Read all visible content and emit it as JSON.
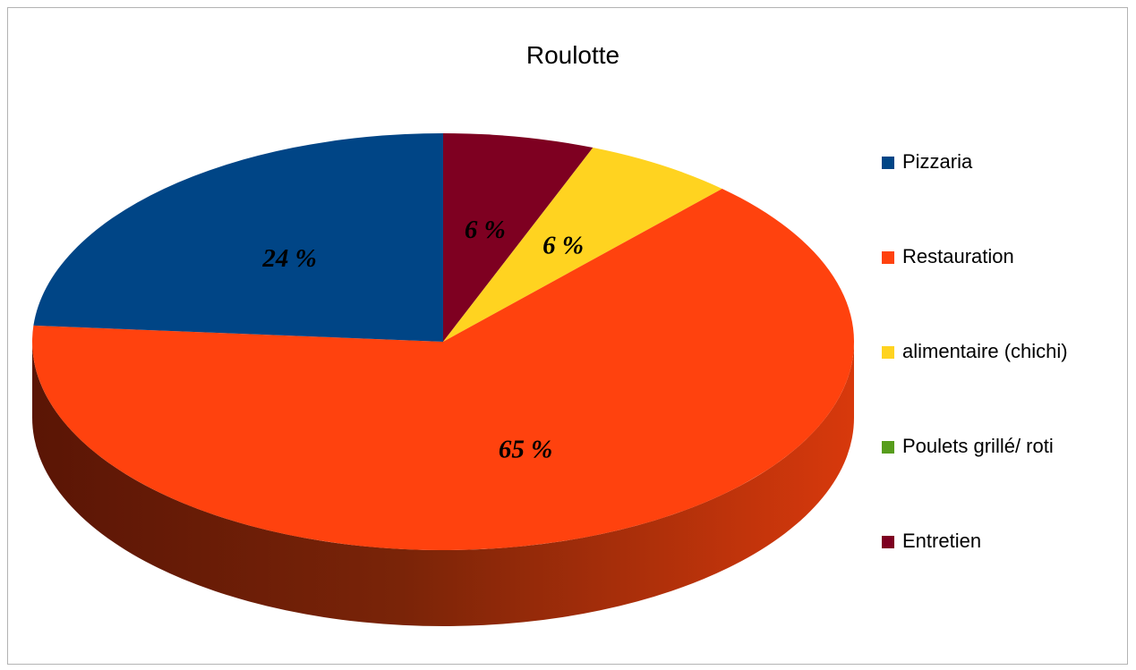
{
  "chart_data": {
    "type": "pie",
    "title": "Roulotte",
    "categories": [
      "Pizzaria",
      "Restauration",
      "alimentaire (chichi)",
      "Poulets grillé/ roti",
      "Entretien"
    ],
    "values": [
      24,
      65,
      6,
      0,
      6
    ],
    "value_labels": [
      "24 %",
      "65 %",
      "6 %",
      "",
      "6 %"
    ],
    "colors": [
      "#004586",
      "#ff420e",
      "#ffd320",
      "#579d1c",
      "#7e0021"
    ],
    "legend_position": "right",
    "three_d": true
  }
}
